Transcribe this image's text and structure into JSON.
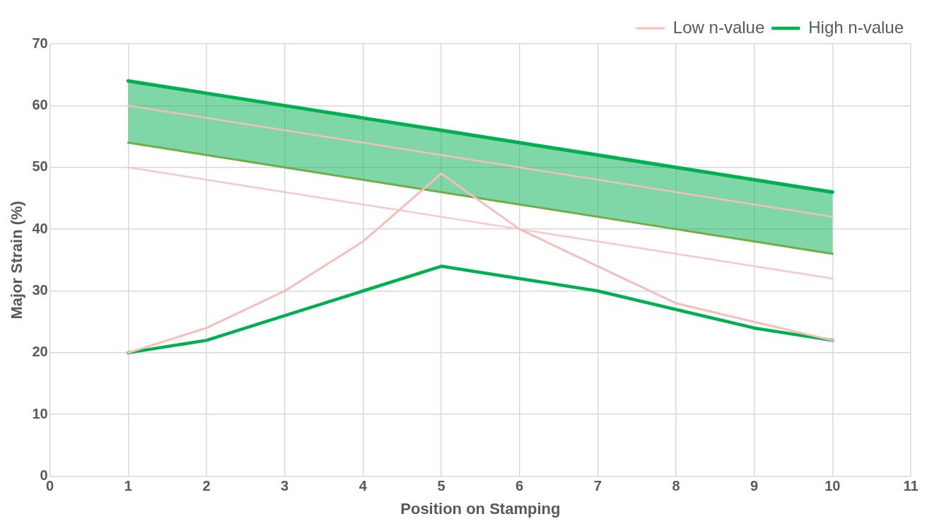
{
  "chart_data": {
    "type": "line",
    "xlabel": "Position on Stamping",
    "ylabel": "Major Strain (%)",
    "x": [
      1,
      2,
      3,
      4,
      5,
      6,
      7,
      8,
      9,
      10
    ],
    "xlim": [
      0,
      11
    ],
    "xticks": [
      0,
      1,
      2,
      3,
      4,
      5,
      6,
      7,
      8,
      9,
      10,
      11
    ],
    "ylim": [
      0,
      70
    ],
    "yticks": [
      0,
      10,
      20,
      30,
      40,
      50,
      60,
      70
    ],
    "grid": true,
    "legend": "top right",
    "marker": "none",
    "line_style": "solid",
    "series": [
      {
        "name": "Low n-value",
        "color": "#f7bcbc",
        "values": [
          20,
          24,
          30,
          38,
          49,
          40,
          34,
          28,
          25,
          22
        ]
      },
      {
        "color": "#f7c8c8",
        "values": [
          50,
          48,
          46,
          44,
          42,
          40,
          38,
          36,
          34,
          32
        ]
      },
      {
        "color": "#f7bcbc",
        "values": [
          60,
          58,
          56,
          54,
          52,
          50,
          48,
          46,
          44,
          42
        ]
      },
      {
        "name": "High n-value",
        "color": "#00b050",
        "values": [
          20,
          22,
          26,
          30,
          34,
          32,
          30,
          27,
          24,
          22
        ]
      },
      {
        "color": "#70ad47",
        "values": [
          54,
          52,
          50,
          48,
          46,
          44,
          42,
          40,
          38,
          36
        ]
      },
      {
        "color": "#00b050",
        "values": [
          64,
          62,
          60,
          58,
          56,
          54,
          52,
          50,
          48,
          46
        ],
        "lower": [
          54,
          52,
          50,
          48,
          46,
          44,
          42,
          40,
          38,
          36
        ],
        "upper": [
          64,
          62,
          60,
          58,
          56,
          54,
          52,
          50,
          48,
          46
        ]
      }
    ]
  }
}
